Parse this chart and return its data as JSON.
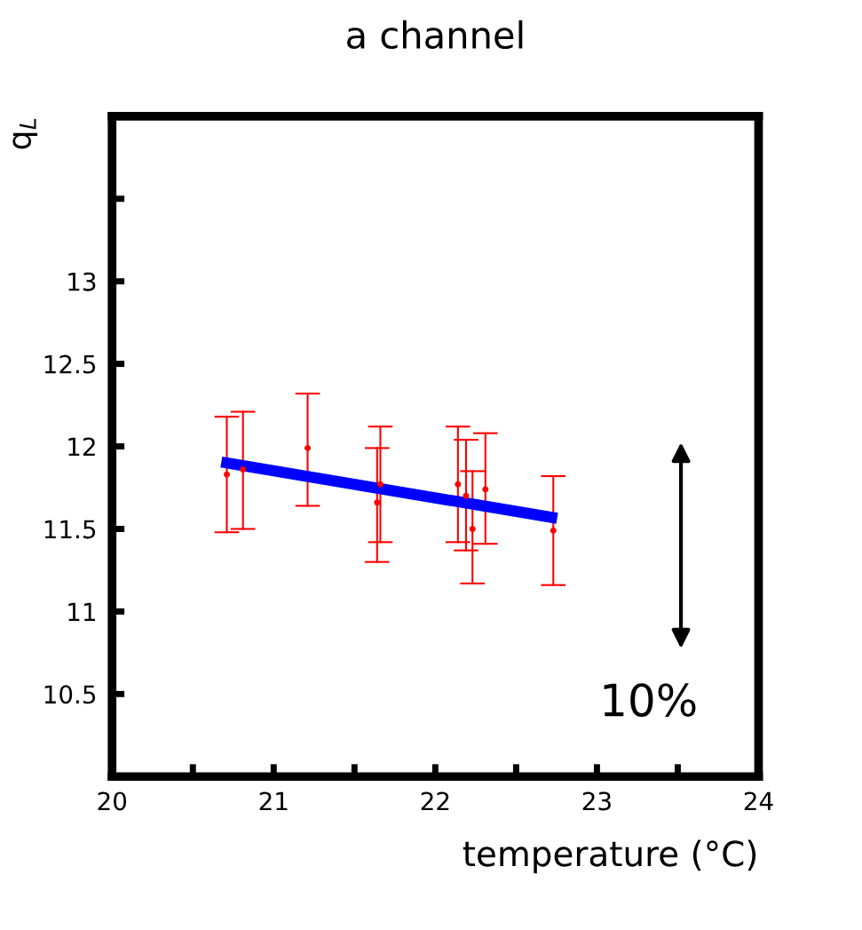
{
  "chart_data": {
    "type": "scatter",
    "title": "a channel",
    "xlabel": "temperature (°C)",
    "ylabel": "q$_{L}$",
    "xlim": [
      20,
      24
    ],
    "ylim": [
      10,
      14
    ],
    "xticks": [
      20,
      {
        "value": 20.5,
        "label": null
      },
      21,
      {
        "value": 21.5,
        "label": null
      },
      22,
      {
        "value": 22.5,
        "label": null
      },
      23,
      {
        "value": 23.5,
        "label": null
      },
      24
    ],
    "yticks": [
      10.5,
      11,
      11.5,
      12,
      12.5,
      13,
      {
        "value": 13.5,
        "label": null
      }
    ],
    "grid": false,
    "annotations": [
      "10%"
    ],
    "series": [
      {
        "color": "#ff0000",
        "marker": "circle",
        "x": [
          20.71,
          20.81,
          21.21,
          21.66,
          21.64,
          22.14,
          22.19,
          22.23,
          22.31,
          22.73
        ],
        "values": [
          11.83,
          11.86,
          11.99,
          11.77,
          11.66,
          11.77,
          11.7,
          11.5,
          11.74,
          11.49
        ],
        "errors": [
          [
            11.48,
            12.18
          ],
          [
            11.5,
            12.21
          ],
          [
            11.64,
            12.32
          ],
          [
            11.42,
            12.12
          ],
          [
            11.3,
            11.99
          ],
          [
            11.42,
            12.12
          ],
          [
            11.37,
            12.04
          ],
          [
            11.17,
            11.85
          ],
          [
            11.41,
            12.08
          ],
          [
            11.16,
            11.82
          ]
        ]
      },
      {
        "type": "line",
        "color": "#0000ff",
        "x": [
          20.71,
          22.72
        ],
        "values": [
          11.9,
          11.57
        ]
      }
    ]
  }
}
